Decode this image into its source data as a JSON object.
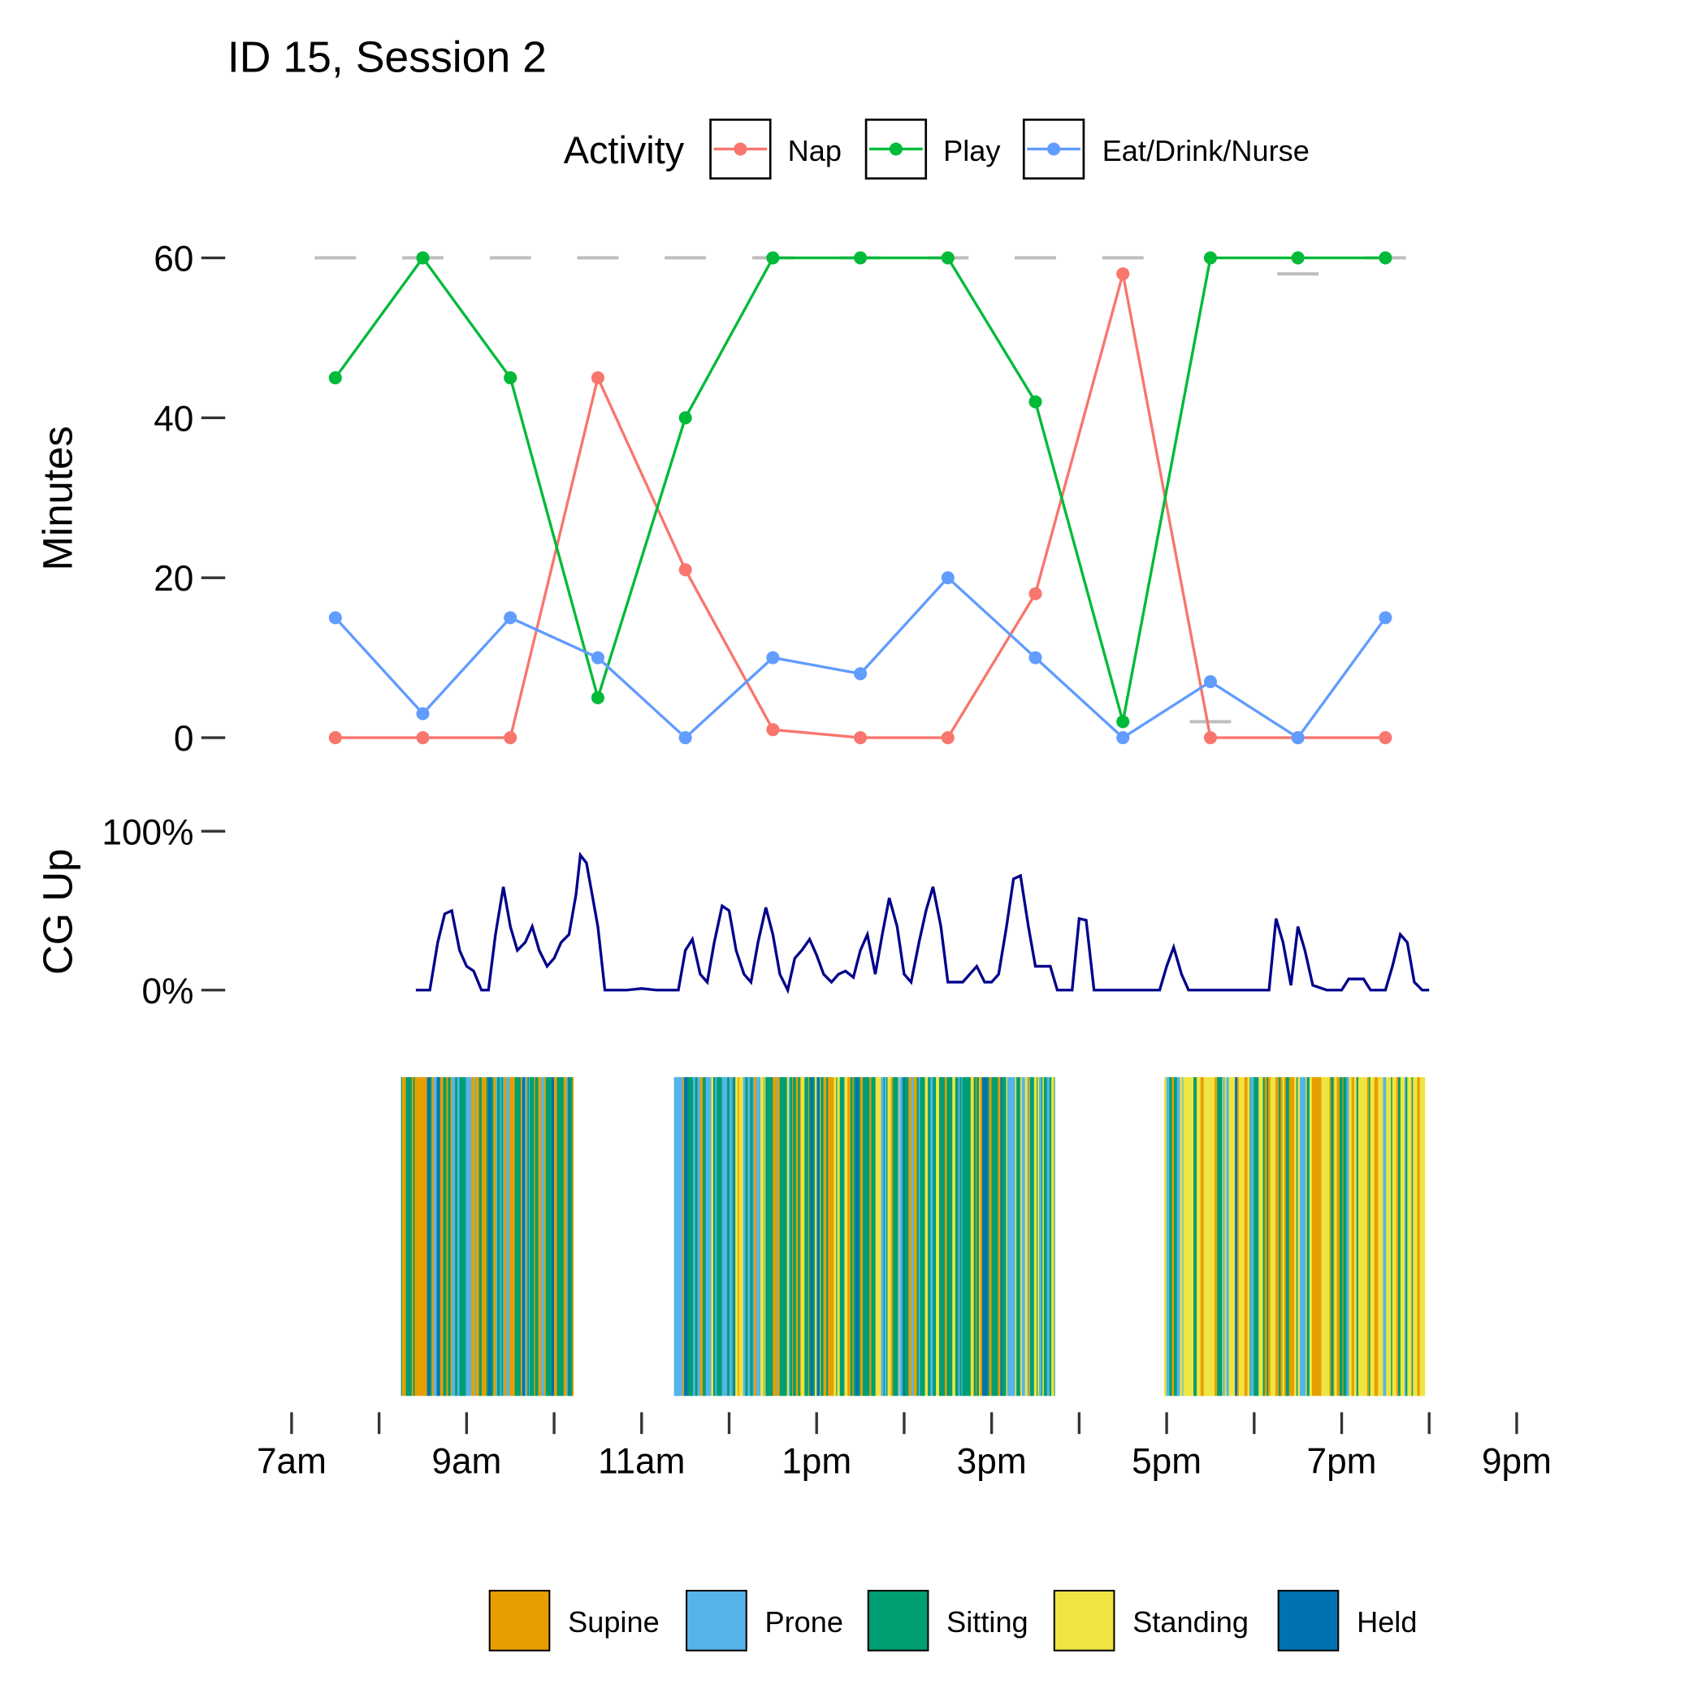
{
  "chart_data": [
    {
      "type": "line",
      "title": "ID 15, Session 2",
      "ylabel": "Minutes",
      "ylim": [
        0,
        60
      ],
      "yticks": [
        "0",
        "20",
        "40",
        "60"
      ],
      "legend_title": "Activity",
      "legend_position": "top",
      "x_hours": [
        7.5,
        8.5,
        9.5,
        10.5,
        11.5,
        12.5,
        13.5,
        14.5,
        15.5,
        16.5,
        17.5,
        18.5,
        19.5
      ],
      "series": [
        {
          "name": "Nap",
          "color": "#F8766D",
          "values": [
            0,
            0,
            0,
            45,
            21,
            1,
            0,
            0,
            18,
            58,
            0,
            0,
            0
          ]
        },
        {
          "name": "Play",
          "color": "#00BA38",
          "values": [
            45,
            60,
            45,
            5,
            40,
            60,
            60,
            60,
            42,
            2,
            60,
            60,
            60
          ]
        },
        {
          "name": "Eat/Drink/Nurse",
          "color": "#619CFF",
          "values": [
            15,
            3,
            15,
            10,
            0,
            10,
            8,
            20,
            10,
            0,
            7,
            0,
            15
          ]
        }
      ],
      "reference_values": [
        60,
        60,
        60,
        60,
        60,
        60,
        60,
        60,
        60,
        60,
        2,
        58,
        60
      ],
      "reference_color": "#BEBEBE"
    },
    {
      "type": "line",
      "ylabel": "CG Up",
      "ylim": [
        0,
        100
      ],
      "yticks": [
        "0%",
        "100%"
      ],
      "color": "#00008B",
      "points": [
        [
          8.42,
          0
        ],
        [
          8.58,
          0
        ],
        [
          8.67,
          30
        ],
        [
          8.75,
          48
        ],
        [
          8.83,
          50
        ],
        [
          8.92,
          25
        ],
        [
          9.0,
          15
        ],
        [
          9.08,
          12
        ],
        [
          9.17,
          0
        ],
        [
          9.25,
          0
        ],
        [
          9.33,
          35
        ],
        [
          9.42,
          65
        ],
        [
          9.5,
          40
        ],
        [
          9.58,
          25
        ],
        [
          9.67,
          30
        ],
        [
          9.75,
          40
        ],
        [
          9.83,
          25
        ],
        [
          9.92,
          15
        ],
        [
          10.0,
          20
        ],
        [
          10.08,
          30
        ],
        [
          10.17,
          35
        ],
        [
          10.25,
          60
        ],
        [
          10.3,
          85
        ],
        [
          10.37,
          80
        ],
        [
          10.5,
          40
        ],
        [
          10.58,
          0
        ],
        [
          10.83,
          0
        ],
        [
          11.0,
          1
        ],
        [
          11.17,
          0
        ],
        [
          11.42,
          0
        ],
        [
          11.5,
          25
        ],
        [
          11.58,
          32
        ],
        [
          11.67,
          10
        ],
        [
          11.75,
          5
        ],
        [
          11.83,
          30
        ],
        [
          11.92,
          53
        ],
        [
          12.0,
          50
        ],
        [
          12.08,
          25
        ],
        [
          12.17,
          10
        ],
        [
          12.25,
          5
        ],
        [
          12.33,
          30
        ],
        [
          12.42,
          52
        ],
        [
          12.5,
          35
        ],
        [
          12.58,
          10
        ],
        [
          12.67,
          0
        ],
        [
          12.75,
          20
        ],
        [
          12.83,
          25
        ],
        [
          12.92,
          32
        ],
        [
          13.0,
          22
        ],
        [
          13.08,
          10
        ],
        [
          13.17,
          5
        ],
        [
          13.25,
          10
        ],
        [
          13.33,
          12
        ],
        [
          13.42,
          8
        ],
        [
          13.5,
          25
        ],
        [
          13.58,
          35
        ],
        [
          13.67,
          10
        ],
        [
          13.75,
          35
        ],
        [
          13.83,
          58
        ],
        [
          13.92,
          40
        ],
        [
          14.0,
          10
        ],
        [
          14.08,
          5
        ],
        [
          14.17,
          30
        ],
        [
          14.25,
          50
        ],
        [
          14.33,
          65
        ],
        [
          14.42,
          40
        ],
        [
          14.5,
          5
        ],
        [
          14.67,
          5
        ],
        [
          14.75,
          10
        ],
        [
          14.83,
          15
        ],
        [
          14.92,
          5
        ],
        [
          15.0,
          5
        ],
        [
          15.08,
          10
        ],
        [
          15.17,
          40
        ],
        [
          15.25,
          70
        ],
        [
          15.33,
          72
        ],
        [
          15.42,
          40
        ],
        [
          15.5,
          15
        ],
        [
          15.67,
          15
        ],
        [
          15.75,
          0
        ],
        [
          15.92,
          0
        ],
        [
          16.0,
          45
        ],
        [
          16.08,
          44
        ],
        [
          16.17,
          0
        ],
        [
          16.92,
          0
        ],
        [
          17.0,
          15
        ],
        [
          17.08,
          27
        ],
        [
          17.17,
          10
        ],
        [
          17.25,
          0
        ],
        [
          18.17,
          0
        ],
        [
          18.25,
          45
        ],
        [
          18.33,
          30
        ],
        [
          18.42,
          3
        ],
        [
          18.5,
          40
        ],
        [
          18.58,
          25
        ],
        [
          18.67,
          3
        ],
        [
          18.83,
          0
        ],
        [
          19.0,
          0
        ],
        [
          19.08,
          7
        ],
        [
          19.25,
          7
        ],
        [
          19.33,
          0
        ],
        [
          19.5,
          0
        ],
        [
          19.58,
          15
        ],
        [
          19.67,
          35
        ],
        [
          19.75,
          30
        ],
        [
          19.83,
          5
        ],
        [
          19.92,
          0
        ],
        [
          20.0,
          0
        ]
      ]
    },
    {
      "type": "heatmap",
      "description_of_encoding": "position category over time",
      "legend": [
        {
          "name": "Supine",
          "color": "#E69F00"
        },
        {
          "name": "Prone",
          "color": "#56B4E9"
        },
        {
          "name": "Sitting",
          "color": "#009E73"
        },
        {
          "name": "Standing",
          "color": "#F0E442"
        },
        {
          "name": "Held",
          "color": "#0072B2"
        }
      ],
      "legend_position": "bottom",
      "blocks": [
        {
          "start": 8.25,
          "end": 10.22,
          "weights": [
            0.3,
            0.2,
            0.4,
            0.02,
            0.08
          ]
        },
        {
          "start": 11.37,
          "end": 12.4,
          "weights": [
            0.15,
            0.3,
            0.35,
            0.1,
            0.1
          ]
        },
        {
          "start": 12.4,
          "end": 14.9,
          "weights": [
            0.2,
            0.1,
            0.4,
            0.25,
            0.05
          ]
        },
        {
          "start": 14.9,
          "end": 15.72,
          "weights": [
            0.2,
            0.2,
            0.4,
            0.15,
            0.05
          ]
        },
        {
          "start": 16.97,
          "end": 19.95,
          "weights": [
            0.2,
            0.08,
            0.25,
            0.42,
            0.05
          ]
        }
      ]
    }
  ],
  "x_axis": {
    "start_hour": 7,
    "end_hour": 21,
    "labels": [
      {
        "hour": 7,
        "text": "7am"
      },
      {
        "hour": 9,
        "text": "9am"
      },
      {
        "hour": 11,
        "text": "11am"
      },
      {
        "hour": 13,
        "text": "1pm"
      },
      {
        "hour": 15,
        "text": "3pm"
      },
      {
        "hour": 17,
        "text": "5pm"
      },
      {
        "hour": 19,
        "text": "7pm"
      },
      {
        "hour": 21,
        "text": "9pm"
      }
    ]
  }
}
